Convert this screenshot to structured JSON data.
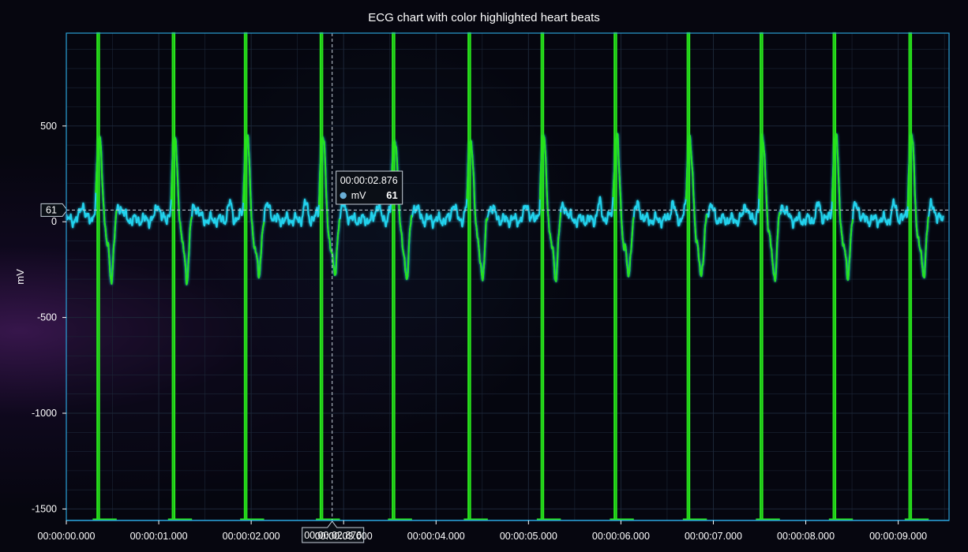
{
  "chart_data": {
    "type": "line",
    "title": "ECG chart with color highlighted heart beats",
    "xlabel": "",
    "ylabel": "mV",
    "xlim": [
      0,
      9.55
    ],
    "ylim": [
      -1560,
      985
    ],
    "x_ticks": [
      {
        "value": 0,
        "label": "00:00:00.000"
      },
      {
        "value": 1,
        "label": "00:00:01.000"
      },
      {
        "value": 2,
        "label": "00:00:02.000"
      },
      {
        "value": 3,
        "label": "00:00:03.000"
      },
      {
        "value": 4,
        "label": "00:00:04.000"
      },
      {
        "value": 5,
        "label": "00:00:05.000"
      },
      {
        "value": 6,
        "label": "00:00:06.000"
      },
      {
        "value": 7,
        "label": "00:00:07.000"
      },
      {
        "value": 8,
        "label": "00:00:08.000"
      },
      {
        "value": 9,
        "label": "00:00:09.000"
      }
    ],
    "y_ticks": [
      {
        "value": 500,
        "label": "500"
      },
      {
        "value": 0,
        "label": "0"
      },
      {
        "value": -500,
        "label": "-500"
      },
      {
        "value": -1000,
        "label": "-1000"
      },
      {
        "value": -1500,
        "label": "-1500"
      }
    ],
    "grid": true,
    "beat_times": [
      0.345,
      1.16,
      1.94,
      2.76,
      3.54,
      4.36,
      5.15,
      5.94,
      6.73,
      7.52,
      8.31,
      9.13
    ],
    "heartbeat_peak": 985,
    "heartbeat_trough": -1550,
    "series": [
      {
        "name": "mV",
        "color": "#22d3ee"
      }
    ],
    "highlight_color": "#27e31b",
    "cursor": {
      "time_label": "00:00:02.876",
      "x": 2.876,
      "value": 61,
      "value_label": "61",
      "series_label": "mV"
    },
    "colors": {
      "frame": "#2a9fd6",
      "grid": "#1c2738",
      "ecg": "#22d3ee",
      "highlight": "#27e31b",
      "cursor": "#c8d2dc",
      "tooltip_bg": "#0b0f16",
      "tooltip_border": "#c8d2dc",
      "tooltip_dot": "#6aaed6"
    }
  }
}
